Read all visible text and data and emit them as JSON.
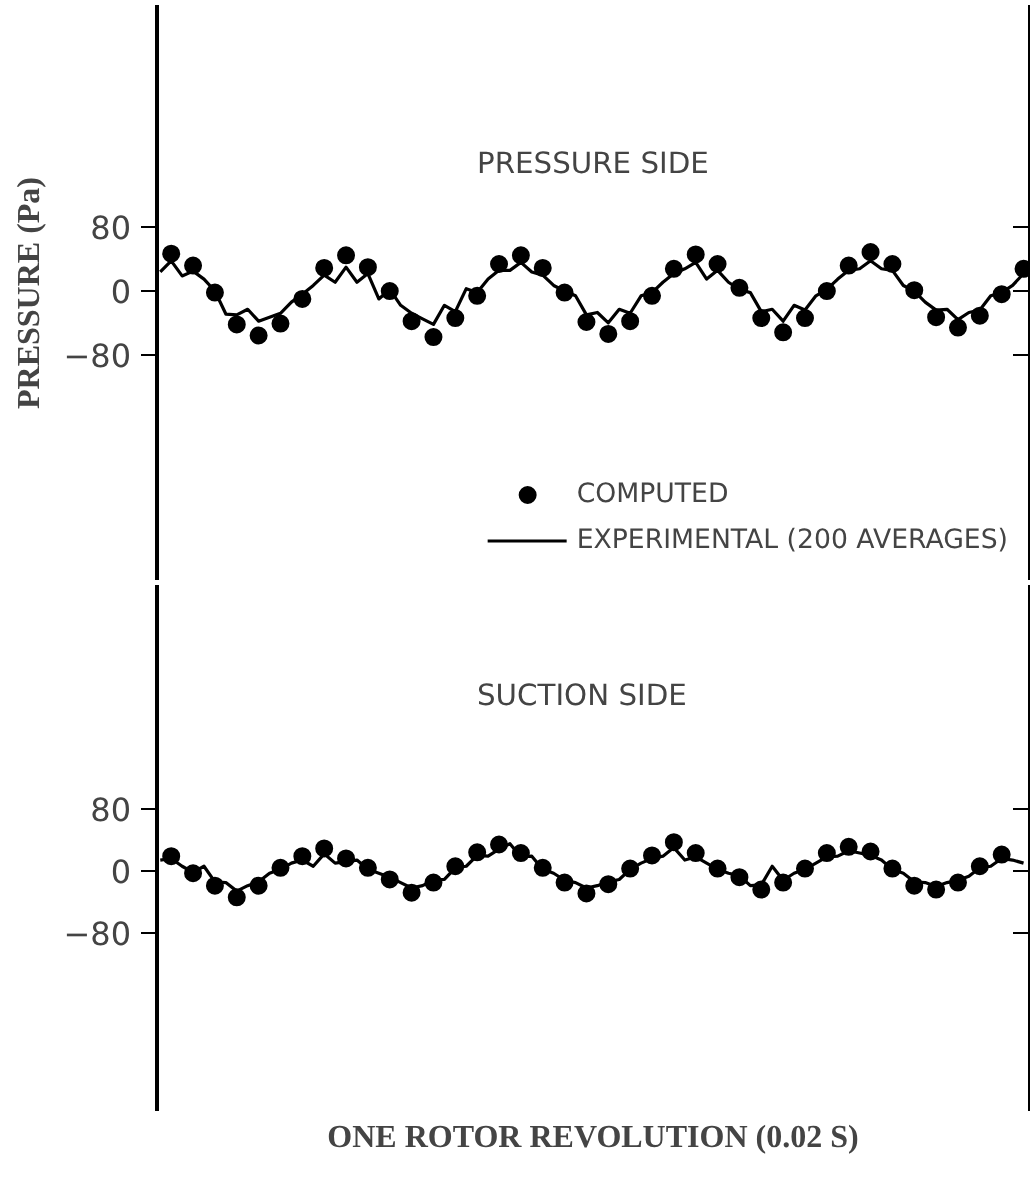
{
  "chart_data": [
    {
      "type": "line",
      "title": "PRESSURE SIDE",
      "ylabel": "PRESSURE (Pa)",
      "categories": [
        null,
        null,
        null,
        null,
        null,
        null,
        null,
        null,
        null,
        null,
        null,
        null,
        null,
        null,
        null,
        null,
        null,
        null,
        null,
        null,
        null,
        null,
        null,
        null,
        null,
        null,
        null,
        null,
        null,
        null,
        null,
        null,
        null,
        null,
        null,
        null,
        null,
        null,
        null,
        null,
        null,
        null,
        null,
        null,
        null,
        null,
        null,
        null,
        null,
        null,
        null,
        null,
        null,
        null,
        null,
        null,
        null,
        null,
        null,
        null,
        null,
        null,
        null,
        null,
        null,
        null,
        null,
        null,
        null,
        null,
        null,
        null,
        null,
        null,
        null,
        null,
        null,
        null,
        null,
        null
      ],
      "ylim": [
        -365,
        360
      ],
      "yticks": [
        -80,
        0,
        80
      ],
      "tick_labels": "y",
      "legend": "bottom right",
      "series": [
        {
          "name": "COMPUTED",
          "type": "scatter",
          "marker": "circle",
          "color": "#000000",
          "values": [
            null,
            47,
            null,
            32,
            null,
            -2,
            null,
            -42,
            null,
            -56,
            null,
            -41,
            null,
            -10,
            null,
            29,
            null,
            45,
            null,
            30,
            null,
            0,
            null,
            -38,
            null,
            -58,
            null,
            -34,
            null,
            -6,
            null,
            34,
            null,
            45,
            null,
            29,
            null,
            -2,
            null,
            -39,
            null,
            -54,
            null,
            -38,
            null,
            -6,
            null,
            28,
            null,
            46,
            null,
            34,
            null,
            4,
            null,
            -34,
            null,
            -52,
            null,
            -34,
            null,
            0,
            null,
            32,
            null,
            49,
            null,
            34,
            null,
            1,
            null,
            -33,
            null,
            -46,
            null,
            -31,
            null,
            -4,
            null,
            28
          ]
        },
        {
          "name": "EXPERIMENTAL (200 AVERAGES)",
          "line_style": "solid",
          "color": "#000000",
          "values": [
            24,
            38,
            19,
            25,
            15,
            0,
            -29,
            -30,
            -23,
            -38,
            -33,
            -28,
            -14,
            -4,
            7,
            20,
            11,
            30,
            11,
            22,
            -10,
            2,
            -18,
            -28,
            -35,
            -42,
            -18,
            -26,
            3,
            -2,
            15,
            26,
            26,
            36,
            24,
            20,
            7,
            0,
            -6,
            -30,
            -27,
            -40,
            -23,
            -28,
            -6,
            -2,
            11,
            22,
            28,
            36,
            15,
            26,
            11,
            2,
            -2,
            -26,
            -23,
            -38,
            -18,
            -24,
            -6,
            2,
            15,
            26,
            28,
            38,
            28,
            26,
            7,
            0,
            -14,
            -24,
            -23,
            -36,
            -27,
            -24,
            -6,
            -2,
            7,
            22
          ]
        }
      ]
    },
    {
      "type": "line",
      "title": "SUCTION SIDE",
      "xlabel": "ONE ROTOR REVOLUTION (0.02 S)",
      "categories": [
        null,
        null,
        null,
        null,
        null,
        null,
        null,
        null,
        null,
        null,
        null,
        null,
        null,
        null,
        null,
        null,
        null,
        null,
        null,
        null,
        null,
        null,
        null,
        null,
        null,
        null,
        null,
        null,
        null,
        null,
        null,
        null,
        null,
        null,
        null,
        null,
        null,
        null,
        null,
        null,
        null,
        null,
        null,
        null,
        null,
        null,
        null,
        null,
        null,
        null,
        null,
        null,
        null,
        null,
        null,
        null,
        null,
        null,
        null,
        null,
        null,
        null,
        null,
        null,
        null,
        null,
        null,
        null,
        null,
        null,
        null,
        null,
        null,
        null,
        null,
        null,
        null,
        null,
        null,
        null
      ],
      "ylim": [
        -309,
        368
      ],
      "yticks": [
        -80,
        0,
        80
      ],
      "tick_labels": "y",
      "series": [
        {
          "type": "scatter",
          "marker": "circle",
          "color": "#000000",
          "values": [
            null,
            19,
            null,
            -3,
            null,
            -19,
            null,
            -34,
            null,
            -19,
            null,
            4,
            null,
            19,
            null,
            29,
            null,
            16,
            null,
            4,
            null,
            -11,
            null,
            -28,
            null,
            -15,
            null,
            6,
            null,
            24,
            null,
            34,
            null,
            23,
            null,
            4,
            null,
            -15,
            null,
            -29,
            null,
            -17,
            null,
            3,
            null,
            20,
            null,
            37,
            null,
            23,
            null,
            3,
            null,
            -8,
            null,
            -24,
            null,
            -15,
            null,
            3,
            null,
            23,
            null,
            31,
            null,
            25,
            null,
            3,
            null,
            -19,
            null,
            -24,
            null,
            -15,
            null,
            6,
            null,
            21,
            null,
            null
          ]
        },
        {
          "line_style": "solid",
          "color": "#000000",
          "values": [
            14,
            16,
            6,
            -2,
            6,
            -14,
            -15,
            -26,
            -19,
            -14,
            -3,
            2,
            10,
            14,
            6,
            22,
            10,
            12,
            14,
            2,
            -3,
            -8,
            -15,
            -22,
            -19,
            -12,
            -11,
            4,
            6,
            20,
            19,
            28,
            35,
            18,
            19,
            2,
            -3,
            -12,
            -15,
            -22,
            -19,
            -14,
            -11,
            2,
            10,
            16,
            19,
            30,
            14,
            18,
            10,
            2,
            -3,
            -6,
            -19,
            -18,
            6,
            -12,
            -3,
            2,
            10,
            18,
            19,
            26,
            23,
            20,
            14,
            2,
            -3,
            -14,
            -15,
            -20,
            -15,
            -12,
            -7,
            4,
            6,
            16,
            14,
            10
          ]
        }
      ]
    }
  ]
}
